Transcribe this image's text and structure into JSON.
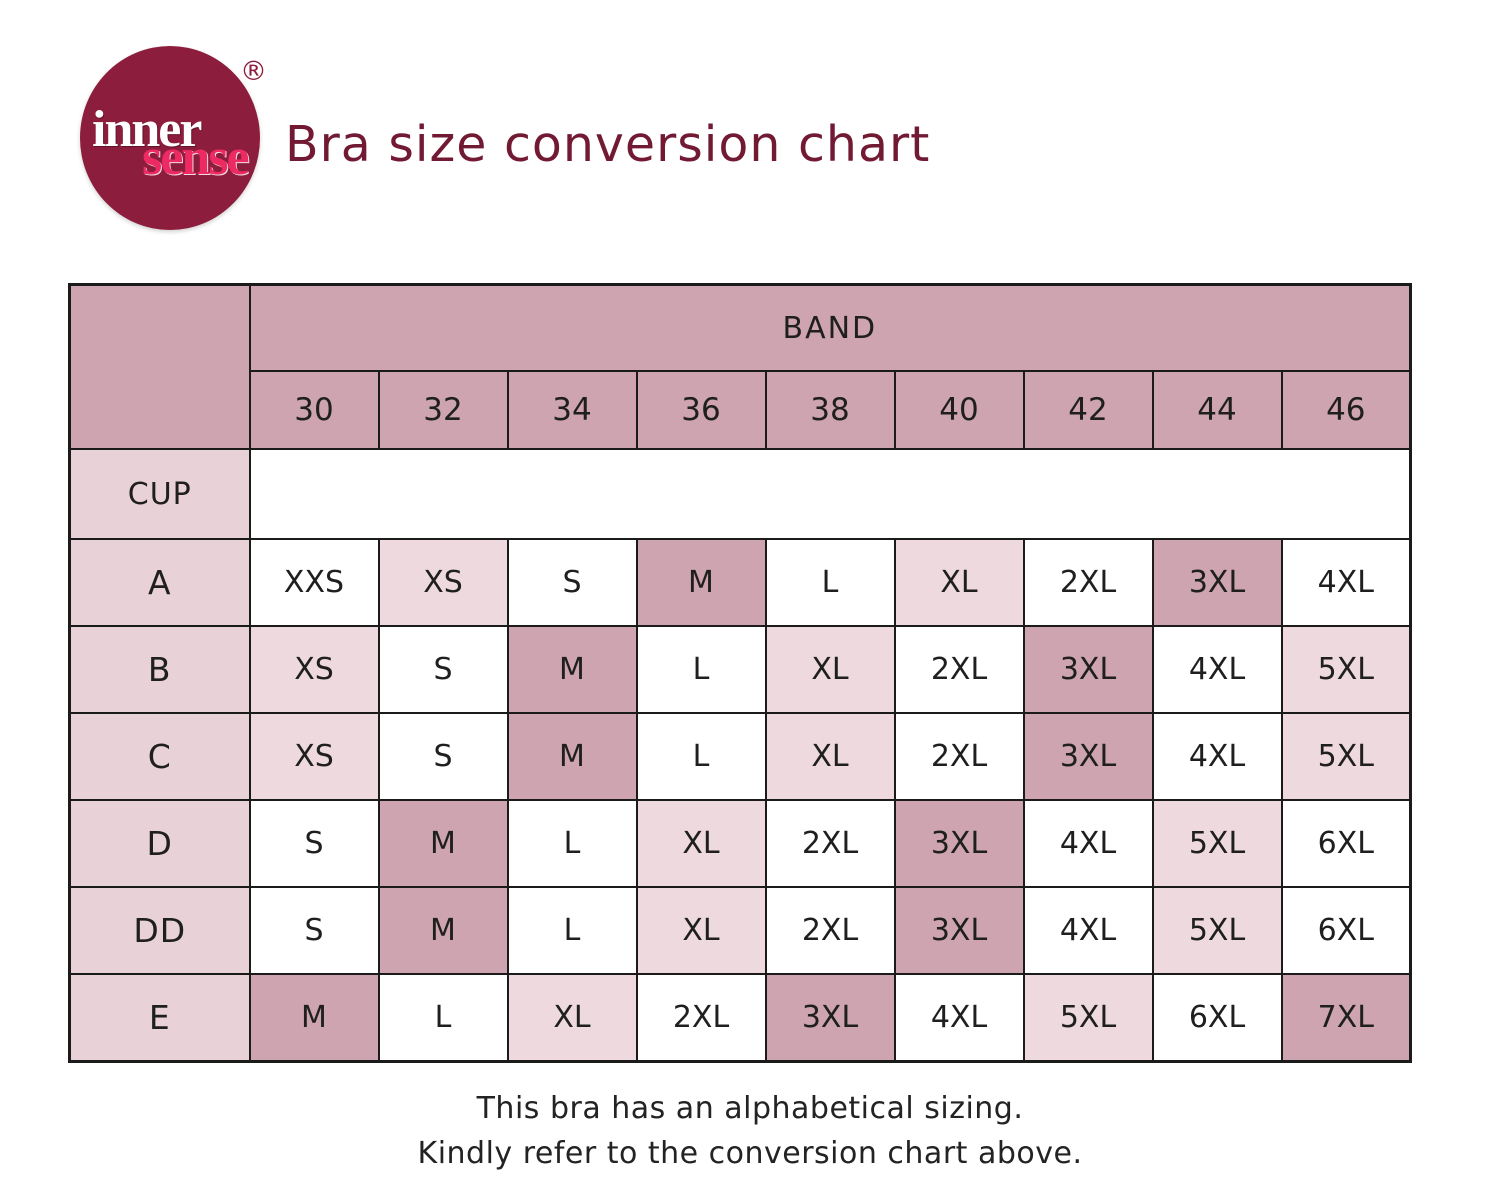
{
  "logo": {
    "word_inner": "inner",
    "word_sense": "sense",
    "registered_mark": "®"
  },
  "title": "Bra size conversion chart",
  "footer": {
    "line1": "This bra has an alphabetical sizing.",
    "line2": "Kindly refer to the conversion chart above."
  },
  "palette": {
    "logo_circle": "#8d1d3c",
    "logo_inner_text": "#ffffff",
    "logo_sense_text": "#ee2a62",
    "title_text": "#721a33",
    "header_cell_bg": "#cda4af",
    "label_cell_bg": "#e8d2d8",
    "shade_light": "#eed9de",
    "shade_dark": "#cda4af",
    "cell_white": "#ffffff",
    "grid_border": "#1b1b1b",
    "footer_text": "#232323"
  },
  "chart_data": {
    "type": "table",
    "title": "Bra size conversion chart",
    "column_group_label": "BAND",
    "row_group_label": "CUP",
    "columns": [
      "30",
      "32",
      "34",
      "36",
      "38",
      "40",
      "42",
      "44",
      "46"
    ],
    "rows": [
      {
        "label": "A",
        "values": [
          "XXS",
          "XS",
          "S",
          "M",
          "L",
          "XL",
          "2XL",
          "3XL",
          "4XL"
        ],
        "shades": [
          "white",
          "light",
          "white",
          "dark",
          "white",
          "light",
          "white",
          "dark",
          "white"
        ]
      },
      {
        "label": "B",
        "values": [
          "XS",
          "S",
          "M",
          "L",
          "XL",
          "2XL",
          "3XL",
          "4XL",
          "5XL"
        ],
        "shades": [
          "light",
          "white",
          "dark",
          "white",
          "light",
          "white",
          "dark",
          "white",
          "light"
        ]
      },
      {
        "label": "C",
        "values": [
          "XS",
          "S",
          "M",
          "L",
          "XL",
          "2XL",
          "3XL",
          "4XL",
          "5XL"
        ],
        "shades": [
          "light",
          "white",
          "dark",
          "white",
          "light",
          "white",
          "dark",
          "white",
          "light"
        ]
      },
      {
        "label": "D",
        "values": [
          "S",
          "M",
          "L",
          "XL",
          "2XL",
          "3XL",
          "4XL",
          "5XL",
          "6XL"
        ],
        "shades": [
          "white",
          "dark",
          "white",
          "light",
          "white",
          "dark",
          "white",
          "light",
          "white"
        ]
      },
      {
        "label": "DD",
        "values": [
          "S",
          "M",
          "L",
          "XL",
          "2XL",
          "3XL",
          "4XL",
          "5XL",
          "6XL"
        ],
        "shades": [
          "white",
          "dark",
          "white",
          "light",
          "white",
          "dark",
          "white",
          "light",
          "white"
        ]
      },
      {
        "label": "E",
        "values": [
          "M",
          "L",
          "XL",
          "2XL",
          "3XL",
          "4XL",
          "5XL",
          "6XL",
          "7XL"
        ],
        "shades": [
          "dark",
          "white",
          "light",
          "white",
          "dark",
          "white",
          "light",
          "white",
          "dark"
        ]
      }
    ]
  }
}
